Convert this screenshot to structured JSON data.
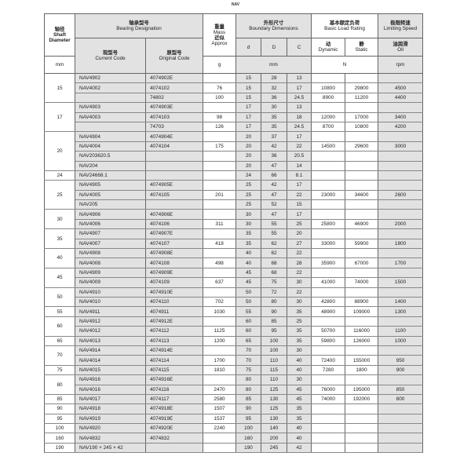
{
  "page_title": "NAV",
  "header": {
    "shaft": {
      "cn": "轴径",
      "en1": "Shaft",
      "en2": "Diameter",
      "unit": "mm"
    },
    "designation": {
      "cn": "轴承型号",
      "en": "Bearing Designation",
      "current_cn": "现型号",
      "current_en": "Current Code",
      "original_cn": "原型号",
      "original_en": "Original Code"
    },
    "mass": {
      "cn1": "重量",
      "en1": "Mass",
      "cn2": "近似",
      "en2": "Approx",
      "unit": "g"
    },
    "boundary": {
      "cn": "外形尺寸",
      "en": "Boundary Dimensions",
      "d": "d",
      "D": "D",
      "C": "C",
      "unit": "mm"
    },
    "load": {
      "cn": "基本额定负荷",
      "en": "Basic Load Rating",
      "dynamic_cn": "动",
      "dynamic_en": "Dynamic",
      "static_cn": "静",
      "static_en": "Static",
      "unit": "N"
    },
    "speed": {
      "cn": "极限转速",
      "en": "Limiting Speed",
      "oil_cn": "油润滑",
      "oil_en": "Oil",
      "unit": "rpm"
    }
  },
  "groups": [
    {
      "shaft": "15",
      "rows": [
        [
          "NAV4902",
          "4074902E",
          "",
          "15",
          "28",
          "13",
          "",
          "",
          ""
        ],
        [
          "NAV4002",
          "4074102",
          "76",
          "15",
          "32",
          "17",
          "10800",
          "29800",
          "4500"
        ],
        [
          "",
          "74802",
          "100",
          "15",
          "36",
          "24.5",
          "8900",
          "11200",
          "4400"
        ]
      ]
    },
    {
      "shaft": "17",
      "rows": [
        [
          "NAV4903",
          "4074903E",
          "",
          "17",
          "30",
          "13",
          "",
          "",
          ""
        ],
        [
          "NAV4003",
          "4074103",
          "98",
          "17",
          "35",
          "18",
          "12000",
          "17000",
          "3400"
        ],
        [
          "",
          "74703",
          "126",
          "17",
          "35",
          "24.5",
          "8700",
          "10800",
          "4200"
        ]
      ]
    },
    {
      "shaft": "20",
      "rows": [
        [
          "NAV4904",
          "4074904E",
          "",
          "20",
          "37",
          "17",
          "",
          "",
          ""
        ],
        [
          "NAV4004",
          "4074104",
          "175",
          "20",
          "42",
          "22",
          "14500",
          "29600",
          "3000"
        ],
        [
          "NAV203620.5",
          "",
          "",
          "20",
          "36",
          "20.5",
          "",
          "",
          ""
        ],
        [
          "NAV204",
          "",
          "",
          "20",
          "47",
          "14",
          "",
          "",
          ""
        ]
      ]
    },
    {
      "shaft": "24",
      "rows": [
        [
          "NAV24668.1",
          "",
          "",
          "24",
          "66",
          "8.1",
          "",
          "",
          ""
        ]
      ]
    },
    {
      "shaft": "25",
      "rows": [
        [
          "NAV4905",
          "4074905E",
          "",
          "25",
          "42",
          "17",
          "",
          "",
          ""
        ],
        [
          "NAV4005",
          "4074105",
          "201",
          "25",
          "47",
          "22",
          "23000",
          "34600",
          "2600"
        ],
        [
          "NAV205",
          "",
          "",
          "25",
          "52",
          "15",
          "",
          "",
          ""
        ]
      ]
    },
    {
      "shaft": "30",
      "rows": [
        [
          "NAV4906",
          "4074906E",
          "",
          "30",
          "47",
          "17",
          "",
          "",
          ""
        ],
        [
          "NAV4006",
          "4074106",
          "311",
          "30",
          "55",
          "25",
          "25800",
          "46900",
          "2000"
        ]
      ]
    },
    {
      "shaft": "35",
      "rows": [
        [
          "NAV4907",
          "4074907E",
          "",
          "35",
          "55",
          "20",
          "",
          "",
          ""
        ],
        [
          "NAV4007",
          "4074107",
          "418",
          "35",
          "62",
          "27",
          "33000",
          "59900",
          "1800"
        ]
      ]
    },
    {
      "shaft": "40",
      "rows": [
        [
          "NAV4908",
          "4074908E",
          "",
          "40",
          "62",
          "22",
          "",
          "",
          ""
        ],
        [
          "NAV4008",
          "4074108",
          "498",
          "40",
          "68",
          "28",
          "35900",
          "67000",
          "1700"
        ]
      ]
    },
    {
      "shaft": "45",
      "rows": [
        [
          "NAV4909",
          "4074909E",
          "",
          "45",
          "68",
          "22",
          "",
          "",
          ""
        ],
        [
          "NAV4009",
          "4074109",
          "637",
          "45",
          "75",
          "30",
          "41000",
          "74000",
          "1500"
        ]
      ]
    },
    {
      "shaft": "50",
      "rows": [
        [
          "NAV4910",
          "4074910E",
          "",
          "50",
          "72",
          "22",
          "",
          "",
          ""
        ],
        [
          "NAV4010",
          "4074110",
          "702",
          "50",
          "80",
          "30",
          "42800",
          "88900",
          "1400"
        ]
      ]
    },
    {
      "shaft": "55",
      "rows": [
        [
          "NAV4911",
          "4074911",
          "1030",
          "55",
          "90",
          "35",
          "48900",
          "109000",
          "1300"
        ]
      ]
    },
    {
      "shaft": "60",
      "rows": [
        [
          "NAV4912",
          "4074912E",
          "",
          "60",
          "85",
          "25",
          "",
          "",
          ""
        ],
        [
          "NAV4012",
          "4074112",
          "1125",
          "60",
          "95",
          "35",
          "50700",
          "116000",
          "1100"
        ]
      ]
    },
    {
      "shaft": "65",
      "rows": [
        [
          "NAV4013",
          "4074113",
          "1200",
          "65",
          "100",
          "35",
          "59800",
          "126000",
          "1000"
        ]
      ]
    },
    {
      "shaft": "70",
      "rows": [
        [
          "NAV4914",
          "4074914E",
          "",
          "70",
          "100",
          "30",
          "",
          "",
          ""
        ],
        [
          "NAV4014",
          "4074114",
          "1700",
          "70",
          "110",
          "40",
          "72400",
          "155000",
          "950"
        ]
      ]
    },
    {
      "shaft": "75",
      "rows": [
        [
          "NAV4015",
          "4074115",
          "1810",
          "75",
          "115",
          "40",
          "7280",
          "1800",
          "900"
        ]
      ]
    },
    {
      "shaft": "80",
      "rows": [
        [
          "NAV4916",
          "4074916E",
          "",
          "80",
          "110",
          "30",
          "",
          "",
          ""
        ],
        [
          "NAV4016",
          "4074116",
          "2470",
          "80",
          "125",
          "45",
          "76000",
          "195000",
          "850"
        ]
      ]
    },
    {
      "shaft": "85",
      "rows": [
        [
          "NAV4017",
          "4074117",
          "2580",
          "85",
          "130",
          "45",
          "74000",
          "192000",
          "800"
        ]
      ]
    },
    {
      "shaft": "90",
      "rows": [
        [
          "NAV4918",
          "4074918E",
          "1507",
          "90",
          "125",
          "35",
          "",
          "",
          ""
        ]
      ]
    },
    {
      "shaft": "95",
      "rows": [
        [
          "NAV4919",
          "4074919E",
          "1537",
          "95",
          "130",
          "35",
          "",
          "",
          ""
        ]
      ]
    },
    {
      "shaft": "100",
      "rows": [
        [
          "NAV4920",
          "4074920E",
          "2240",
          "100",
          "140",
          "40",
          "",
          "",
          ""
        ]
      ]
    },
    {
      "shaft": "160",
      "rows": [
        [
          "NAV4832",
          "4074832",
          "",
          "160",
          "200",
          "40",
          "",
          "",
          ""
        ]
      ]
    },
    {
      "shaft": "190",
      "rows": [
        [
          "NAV190 × 245 × 42",
          "",
          "",
          "190",
          "245",
          "42",
          "",
          "",
          ""
        ]
      ]
    }
  ]
}
